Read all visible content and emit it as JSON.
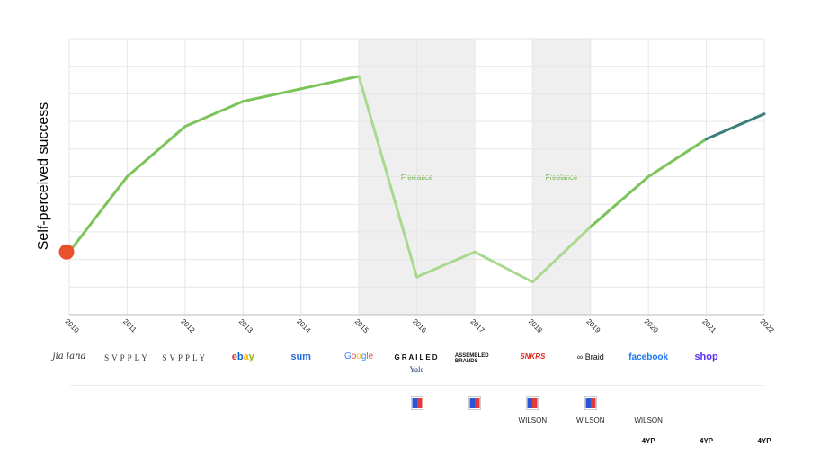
{
  "chart_data": {
    "type": "line",
    "ylabel": "Self-perceived success",
    "x": [
      "2010",
      "2011",
      "2012",
      "2013",
      "2014",
      "2015",
      "2016",
      "2017",
      "2018",
      "2019",
      "2020",
      "2021",
      "2022"
    ],
    "values": [
      2,
      5,
      7,
      8,
      8.5,
      9,
      1,
      2,
      0.8,
      3,
      5,
      6.5,
      7.5
    ],
    "ylim": [
      -0.5,
      10.5
    ],
    "grid": true,
    "bands": [
      {
        "label": "Freelance",
        "from": "2015",
        "to": "2017"
      },
      {
        "label": "Freelance",
        "from": "2018",
        "to": "2019"
      }
    ],
    "colors": {
      "line": "#7cc35a",
      "line_faded": "#a9d98f",
      "line_recent": "#3a7d7a",
      "start_marker": "#e8502e",
      "band": "#efefef"
    }
  },
  "logos": [
    {
      "year": "2010",
      "text": "jia lana",
      "style": "script"
    },
    {
      "year": "2011",
      "text": "SVPPLY",
      "style": "svpply"
    },
    {
      "year": "2012",
      "text": "SVPPLY",
      "style": "svpply"
    },
    {
      "year": "2013",
      "text": "ebay",
      "style": "ebay"
    },
    {
      "year": "2014",
      "text": "sum",
      "style": "sum"
    },
    {
      "year": "2015",
      "text": "Google",
      "style": "google"
    },
    {
      "year": "2016",
      "text": "GRAILED",
      "style": "grailed"
    },
    {
      "year": "2016",
      "text": "Yale",
      "style": "yale"
    },
    {
      "year": "2017",
      "text": "ASSEMBLED BRANDS",
      "style": "assembled"
    },
    {
      "year": "2018",
      "text": "SNKRS",
      "style": "snkrs"
    },
    {
      "year": "2019",
      "text": "Braid",
      "style": "braid"
    },
    {
      "year": "2020",
      "text": "facebook",
      "style": "facebook"
    },
    {
      "year": "2021",
      "text": "shop",
      "style": "shop"
    }
  ],
  "badges": [
    "2016",
    "2017",
    "2018",
    "2019"
  ],
  "wilson": [
    {
      "year": "2018",
      "text": "WILSON"
    },
    {
      "year": "2019",
      "text": "WILSON"
    },
    {
      "year": "2020",
      "text": "WILSON"
    }
  ],
  "fouryp": [
    {
      "year": "2020",
      "text": "4YP"
    },
    {
      "year": "2021",
      "text": "4YP"
    },
    {
      "year": "2022",
      "text": "4YP"
    }
  ]
}
